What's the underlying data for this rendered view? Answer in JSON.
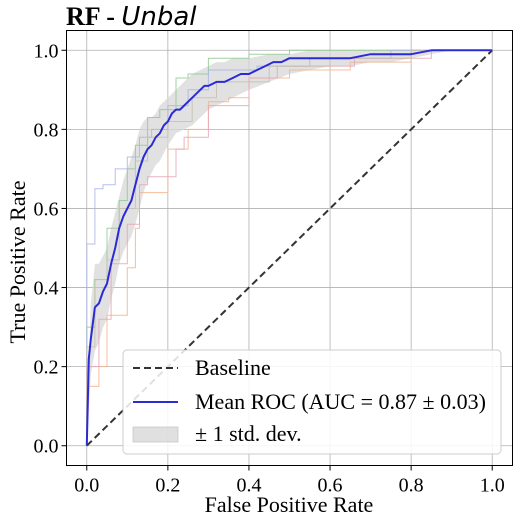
{
  "chart_data": {
    "type": "line",
    "title": {
      "bold": "RF - ",
      "italic": "Unbal"
    },
    "xlabel": "False Positive Rate",
    "ylabel": "True Positive Rate",
    "xlim": [
      -0.05,
      1.05
    ],
    "ylim": [
      -0.05,
      1.05
    ],
    "xticks": [
      0.0,
      0.2,
      0.4,
      0.6,
      0.8,
      1.0
    ],
    "yticks": [
      0.0,
      0.2,
      0.4,
      0.6,
      0.8,
      1.0
    ],
    "xtick_labels": [
      "0.0",
      "0.2",
      "0.4",
      "0.6",
      "0.8",
      "1.0"
    ],
    "ytick_labels": [
      "0.0",
      "0.2",
      "0.4",
      "0.6",
      "0.8",
      "1.0"
    ],
    "grid": true,
    "legend_position": "lower-right",
    "series": [
      {
        "name": "Baseline",
        "style": "dashed",
        "color": "#333333",
        "x": [
          0,
          1
        ],
        "y": [
          0,
          1
        ]
      },
      {
        "name": "Mean ROC (AUC = 0.87 ± 0.03)",
        "style": "solid",
        "color": "#2b2bd6",
        "x": [
          0,
          0.005,
          0.01,
          0.02,
          0.03,
          0.04,
          0.05,
          0.06,
          0.07,
          0.08,
          0.09,
          0.1,
          0.11,
          0.12,
          0.13,
          0.14,
          0.15,
          0.16,
          0.17,
          0.18,
          0.19,
          0.2,
          0.21,
          0.22,
          0.23,
          0.24,
          0.25,
          0.26,
          0.27,
          0.28,
          0.29,
          0.3,
          0.32,
          0.34,
          0.36,
          0.38,
          0.4,
          0.42,
          0.44,
          0.46,
          0.48,
          0.5,
          0.55,
          0.6,
          0.65,
          0.7,
          0.75,
          0.8,
          0.85,
          0.9,
          0.95,
          1.0
        ],
        "y": [
          0,
          0.22,
          0.27,
          0.35,
          0.36,
          0.39,
          0.41,
          0.46,
          0.5,
          0.55,
          0.58,
          0.6,
          0.62,
          0.66,
          0.7,
          0.73,
          0.75,
          0.76,
          0.78,
          0.79,
          0.81,
          0.82,
          0.84,
          0.85,
          0.85,
          0.86,
          0.87,
          0.88,
          0.89,
          0.9,
          0.91,
          0.91,
          0.92,
          0.92,
          0.93,
          0.94,
          0.94,
          0.95,
          0.96,
          0.97,
          0.97,
          0.98,
          0.98,
          0.98,
          0.98,
          0.99,
          0.99,
          0.99,
          1.0,
          1.0,
          1.0,
          1.0
        ]
      }
    ],
    "band": {
      "name": "± 1 std. dev.",
      "color": "#d6d6d6",
      "x": [
        0,
        0.01,
        0.02,
        0.03,
        0.04,
        0.05,
        0.06,
        0.07,
        0.08,
        0.09,
        0.1,
        0.11,
        0.12,
        0.13,
        0.14,
        0.15,
        0.16,
        0.17,
        0.18,
        0.19,
        0.2,
        0.22,
        0.24,
        0.26,
        0.28,
        0.3,
        0.32,
        0.34,
        0.36,
        0.38,
        0.4,
        0.45,
        0.5,
        0.55,
        0.6,
        0.65,
        0.7,
        0.75,
        0.8,
        0.85,
        0.9,
        0.95,
        1.0
      ],
      "upper": [
        0,
        0.36,
        0.46,
        0.46,
        0.48,
        0.5,
        0.55,
        0.59,
        0.63,
        0.67,
        0.7,
        0.73,
        0.76,
        0.8,
        0.82,
        0.83,
        0.83,
        0.84,
        0.86,
        0.87,
        0.88,
        0.9,
        0.92,
        0.94,
        0.95,
        0.96,
        0.97,
        0.97,
        0.98,
        0.98,
        0.98,
        0.99,
        0.99,
        1.0,
        1.0,
        1.0,
        1.0,
        1.0,
        1.0,
        1.0,
        1.0,
        1.0,
        1.0
      ],
      "lower": [
        0,
        0.18,
        0.24,
        0.26,
        0.3,
        0.32,
        0.37,
        0.41,
        0.46,
        0.49,
        0.51,
        0.53,
        0.56,
        0.6,
        0.64,
        0.67,
        0.69,
        0.71,
        0.72,
        0.74,
        0.76,
        0.79,
        0.8,
        0.81,
        0.83,
        0.85,
        0.86,
        0.87,
        0.88,
        0.89,
        0.9,
        0.92,
        0.94,
        0.95,
        0.96,
        0.96,
        0.97,
        0.97,
        0.98,
        0.99,
        1.0,
        1.0,
        1.0
      ]
    },
    "folds": [
      {
        "color": "#8fc98f",
        "x": [
          0,
          0,
          0.02,
          0.02,
          0.05,
          0.05,
          0.08,
          0.08,
          0.1,
          0.1,
          0.12,
          0.12,
          0.15,
          0.15,
          0.18,
          0.18,
          0.22,
          0.22,
          0.25,
          0.25,
          0.3,
          0.3,
          0.4,
          0.4,
          0.5,
          0.5,
          0.85,
          0.85,
          1.0
        ],
        "y": [
          0,
          0.3,
          0.3,
          0.42,
          0.42,
          0.55,
          0.55,
          0.62,
          0.62,
          0.7,
          0.7,
          0.76,
          0.76,
          0.83,
          0.83,
          0.85,
          0.85,
          0.93,
          0.93,
          0.94,
          0.94,
          0.98,
          0.98,
          0.99,
          0.99,
          1.0,
          1.0,
          1.0,
          1.0
        ]
      },
      {
        "color": "#f0b48c",
        "x": [
          0,
          0,
          0.03,
          0.03,
          0.05,
          0.05,
          0.1,
          0.1,
          0.12,
          0.12,
          0.13,
          0.13,
          0.2,
          0.2,
          0.25,
          0.25,
          0.3,
          0.3,
          0.35,
          0.35,
          0.4,
          0.4,
          0.5,
          0.5,
          0.65,
          0.65,
          0.8,
          0.8,
          1.0
        ],
        "y": [
          0,
          0.15,
          0.15,
          0.2,
          0.2,
          0.33,
          0.33,
          0.45,
          0.45,
          0.55,
          0.55,
          0.64,
          0.64,
          0.75,
          0.75,
          0.8,
          0.8,
          0.87,
          0.87,
          0.88,
          0.88,
          0.93,
          0.93,
          0.95,
          0.95,
          0.97,
          0.97,
          1.0,
          1.0
        ]
      },
      {
        "color": "#aab4e6",
        "x": [
          0,
          0,
          0.02,
          0.02,
          0.04,
          0.04,
          0.07,
          0.07,
          0.1,
          0.1,
          0.13,
          0.13,
          0.16,
          0.16,
          0.2,
          0.2,
          0.25,
          0.25,
          0.3,
          0.3,
          0.42,
          0.42,
          0.55,
          0.55,
          0.75,
          0.75,
          1.0
        ],
        "y": [
          0,
          0.51,
          0.51,
          0.65,
          0.65,
          0.66,
          0.66,
          0.7,
          0.7,
          0.73,
          0.73,
          0.78,
          0.78,
          0.8,
          0.8,
          0.86,
          0.86,
          0.9,
          0.9,
          0.95,
          0.95,
          0.96,
          0.96,
          0.98,
          0.98,
          1.0,
          1.0
        ]
      },
      {
        "color": "#e6a6b6",
        "x": [
          0,
          0,
          0.03,
          0.03,
          0.06,
          0.06,
          0.1,
          0.1,
          0.13,
          0.13,
          0.15,
          0.15,
          0.22,
          0.22,
          0.24,
          0.24,
          0.3,
          0.3,
          0.4,
          0.4,
          0.47,
          0.47,
          0.66,
          0.66,
          0.85,
          0.85,
          1.0
        ],
        "y": [
          0,
          0.2,
          0.2,
          0.32,
          0.32,
          0.46,
          0.46,
          0.56,
          0.56,
          0.66,
          0.66,
          0.68,
          0.68,
          0.75,
          0.75,
          0.78,
          0.78,
          0.86,
          0.86,
          0.93,
          0.93,
          0.96,
          0.96,
          0.98,
          0.98,
          1.0,
          1.0
        ]
      },
      {
        "color": "#c6bfae",
        "x": [
          0,
          0,
          0.02,
          0.02,
          0.05,
          0.05,
          0.08,
          0.08,
          0.12,
          0.12,
          0.15,
          0.15,
          0.2,
          0.2,
          0.26,
          0.26,
          0.32,
          0.32,
          0.45,
          0.45,
          0.6,
          0.6,
          0.8,
          0.8,
          1.0
        ],
        "y": [
          0,
          0.25,
          0.25,
          0.4,
          0.4,
          0.47,
          0.47,
          0.6,
          0.6,
          0.72,
          0.72,
          0.78,
          0.78,
          0.82,
          0.82,
          0.88,
          0.88,
          0.92,
          0.92,
          0.96,
          0.96,
          0.98,
          0.98,
          1.0,
          1.0
        ]
      }
    ]
  }
}
